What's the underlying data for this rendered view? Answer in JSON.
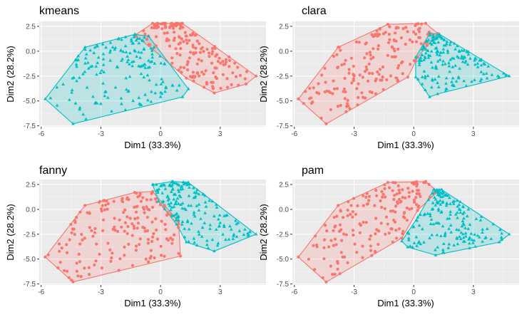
{
  "colors": {
    "cluster1": "#F8766D",
    "cluster2": "#00BFC4",
    "panel_background": "#EBEBEB",
    "grid_major": "#FFFFFF"
  },
  "marker_shapes": {
    "cluster1": "circle",
    "cluster2": "triangle"
  },
  "chart_data": [
    {
      "type": "scatter",
      "title": "kmeans",
      "xlabel": "Dim1 (33.3%)",
      "ylabel": "Dim2 (28.2%)",
      "xlim": [
        -6.1,
        5.3
      ],
      "ylim": [
        -7.6,
        3.0
      ],
      "x_ticks": [
        -6,
        -3,
        0,
        3
      ],
      "y_ticks": [
        2.5,
        0.0,
        -2.5,
        -5.0,
        -7.5
      ],
      "x_tick_labels": [
        "-6",
        "-3",
        "0",
        "3"
      ],
      "y_tick_labels": [
        "2.5",
        "0.0",
        "-2.5",
        "-5.0",
        "-7.5"
      ],
      "grid": true,
      "legend": "none",
      "hulls": [
        {
          "cluster": 1,
          "vertices": [
            [
              -1.3,
              1.6
            ],
            [
              -0.4,
              2.8
            ],
            [
              1.1,
              2.8
            ],
            [
              4.8,
              -2.5
            ],
            [
              4.3,
              -3.3
            ],
            [
              2.7,
              -4.2
            ],
            [
              1.3,
              -2.7
            ],
            [
              -0.4,
              0.2
            ]
          ]
        },
        {
          "cluster": 2,
          "vertices": [
            [
              -3.8,
              0.4
            ],
            [
              -1.3,
              1.7
            ],
            [
              -0.6,
              1.5
            ],
            [
              1.4,
              -3.8
            ],
            [
              1.1,
              -4.6
            ],
            [
              -4.4,
              -7.3
            ],
            [
              -5.8,
              -4.8
            ]
          ]
        }
      ]
    },
    {
      "type": "scatter",
      "title": "clara",
      "xlabel": "Dim1 (33.3%)",
      "ylabel": "Dim2 (28.2%)",
      "xlim": [
        -6.1,
        5.3
      ],
      "ylim": [
        -7.6,
        3.0
      ],
      "x_ticks": [
        -6,
        -3,
        0,
        3
      ],
      "y_ticks": [
        2.5,
        0.0,
        -2.5,
        -5.0,
        -7.5
      ],
      "x_tick_labels": [
        "-6",
        "-3",
        "0",
        "3"
      ],
      "y_tick_labels": [
        "2.5",
        "0.0",
        "-2.5",
        "-5.0",
        "-7.5"
      ],
      "grid": true,
      "legend": "none",
      "hulls": [
        {
          "cluster": 1,
          "vertices": [
            [
              -3.8,
              0.4
            ],
            [
              -1.3,
              2.7
            ],
            [
              0.6,
              2.8
            ],
            [
              1.2,
              1.8
            ],
            [
              0.2,
              -0.6
            ],
            [
              -0.3,
              -2.6
            ],
            [
              -4.4,
              -7.3
            ],
            [
              -5.8,
              -4.8
            ]
          ]
        },
        {
          "cluster": 2,
          "vertices": [
            [
              0.8,
              1.8
            ],
            [
              1.3,
              1.7
            ],
            [
              4.8,
              -2.5
            ],
            [
              1.2,
              -4.3
            ],
            [
              0.8,
              -4.6
            ],
            [
              0.1,
              -2.6
            ],
            [
              0.1,
              -0.6
            ]
          ]
        }
      ]
    },
    {
      "type": "scatter",
      "title": "fanny",
      "xlabel": "Dim1 (33.3%)",
      "ylabel": "Dim2 (28.2%)",
      "xlim": [
        -6.1,
        5.3
      ],
      "ylim": [
        -7.6,
        3.0
      ],
      "x_ticks": [
        -6,
        -3,
        0,
        3
      ],
      "y_ticks": [
        2.5,
        0.0,
        -2.5,
        -5.0,
        -7.5
      ],
      "x_tick_labels": [
        "-6",
        "-3",
        "0",
        "3"
      ],
      "y_tick_labels": [
        "2.5",
        "0.0",
        "-2.5",
        "-5.0",
        "-7.5"
      ],
      "grid": true,
      "legend": "none",
      "hulls": [
        {
          "cluster": 1,
          "vertices": [
            [
              -3.8,
              0.4
            ],
            [
              -1.3,
              1.7
            ],
            [
              -0.4,
              1.8
            ],
            [
              0.2,
              0.4
            ],
            [
              0.9,
              -1.2
            ],
            [
              1.0,
              -4.7
            ],
            [
              -4.4,
              -7.3
            ],
            [
              -5.8,
              -4.8
            ]
          ]
        },
        {
          "cluster": 2,
          "vertices": [
            [
              -0.4,
              2.5
            ],
            [
              0.6,
              2.8
            ],
            [
              1.4,
              2.7
            ],
            [
              4.8,
              -2.5
            ],
            [
              2.7,
              -4.2
            ],
            [
              1.3,
              -3.3
            ],
            [
              0.8,
              -1.5
            ],
            [
              -0.1,
              0.8
            ]
          ]
        }
      ]
    },
    {
      "type": "scatter",
      "title": "pam",
      "xlabel": "Dim1 (33.3%)",
      "ylabel": "Dim2 (28.2%)",
      "xlim": [
        -6.1,
        5.3
      ],
      "ylim": [
        -7.6,
        3.0
      ],
      "x_ticks": [
        -6,
        -3,
        0,
        3
      ],
      "y_ticks": [
        2.5,
        0.0,
        -2.5,
        -5.0,
        -7.5
      ],
      "x_tick_labels": [
        "-6",
        "-3",
        "0",
        "3"
      ],
      "y_tick_labels": [
        "2.5",
        "0.0",
        "-2.5",
        "-5.0",
        "-7.5"
      ],
      "grid": true,
      "legend": "none",
      "hulls": [
        {
          "cluster": 1,
          "vertices": [
            [
              -3.8,
              0.4
            ],
            [
              -1.3,
              2.7
            ],
            [
              0.6,
              2.8
            ],
            [
              1.2,
              1.8
            ],
            [
              0.2,
              -0.1
            ],
            [
              -0.6,
              -2.9
            ],
            [
              -4.4,
              -7.3
            ],
            [
              -5.8,
              -4.8
            ]
          ]
        },
        {
          "cluster": 2,
          "vertices": [
            [
              1.0,
              2.0
            ],
            [
              1.4,
              2.0
            ],
            [
              4.8,
              -2.5
            ],
            [
              4.3,
              -3.3
            ],
            [
              1.1,
              -4.6
            ],
            [
              -0.3,
              -3.8
            ],
            [
              -0.6,
              -3.2
            ],
            [
              0.2,
              -0.8
            ]
          ]
        }
      ]
    }
  ]
}
